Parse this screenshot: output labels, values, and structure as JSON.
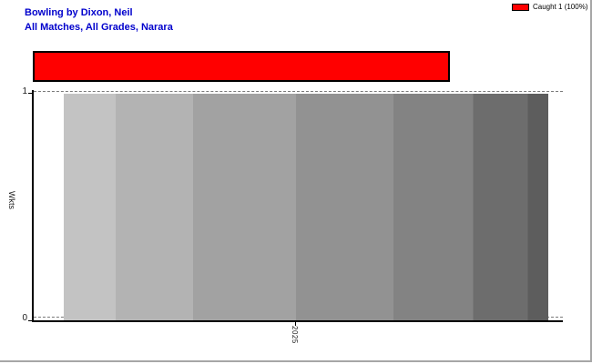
{
  "window": {
    "title_line1": "Bowling by Dixon, Neil",
    "title_line2": "All Matches, All Grades, Narara",
    "title_color": "#0000cc"
  },
  "legend": {
    "label": "Caught 1 (100%)",
    "swatch_color": "#ff0000",
    "position": "top-right"
  },
  "axes": {
    "y_label": "Wkts",
    "y_tick_top": "1",
    "y_tick_bottom": "0",
    "x_tick": "2025"
  },
  "chart_data": {
    "type": "bar",
    "title": "Bowling by Dixon, Neil",
    "subtitle": "All Matches, All Grades, Narara",
    "categories": [
      "2025"
    ],
    "series": [
      {
        "name": "Wkts",
        "values": [
          1
        ]
      }
    ],
    "xlabel": "",
    "ylabel": "Wkts",
    "ylim": [
      0,
      1
    ],
    "yticks": [
      0,
      1
    ],
    "grid": "dashed horizontal gridlines at y=0 and y=1",
    "legend_position": "top-right",
    "legend": [
      {
        "label": "Caught 1 (100%)",
        "color": "#ff0000"
      }
    ],
    "dismissal_overlay_bar": {
      "label": "Caught 1 (100%)",
      "color": "#ff0000",
      "border_color": "#000000",
      "width_fraction_of_plot": 0.78
    },
    "season_bar_gradient_bands": [
      {
        "color": "#c3c3c3",
        "width_pct": 10.7
      },
      {
        "color": "#b3b3b3",
        "width_pct": 16.0
      },
      {
        "color": "#a2a2a2",
        "width_pct": 21.2
      },
      {
        "color": "#929292",
        "width_pct": 20.1
      },
      {
        "color": "#838383",
        "width_pct": 16.5
      },
      {
        "color": "#6d6d6d",
        "width_pct": 11.3
      },
      {
        "color": "#5d5d5d",
        "width_pct": 4.2
      }
    ]
  }
}
